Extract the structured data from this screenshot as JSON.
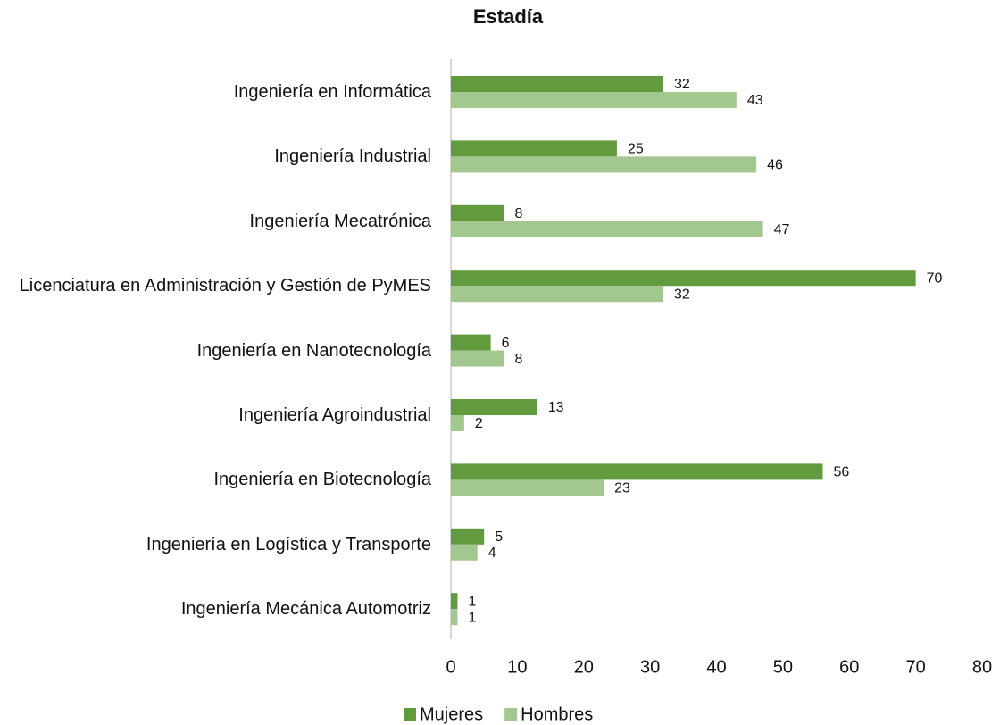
{
  "chart_data": {
    "type": "hbar",
    "title": "Estadía",
    "categories": [
      "Ingeniería en Informática",
      "Ingeniería Industrial",
      "Ingeniería Mecatrónica",
      "Licenciatura en Administración y Gestión de PyMES",
      "Ingeniería en Nanotecnología",
      "Ingeniería Agroindustrial",
      "Ingeniería en Biotecnología",
      "Ingeniería en Logística y Transporte",
      "Ingeniería Mecánica Automotriz"
    ],
    "series": [
      {
        "name": "Mujeres",
        "color": "#629a3e",
        "values": [
          32,
          25,
          8,
          70,
          6,
          13,
          56,
          5,
          1
        ]
      },
      {
        "name": "Hombres",
        "color": "#a3c88f",
        "values": [
          43,
          46,
          47,
          32,
          8,
          2,
          23,
          4,
          1
        ]
      }
    ],
    "xlim": [
      0,
      80
    ],
    "xticks": [
      0,
      10,
      20,
      30,
      40,
      50,
      60,
      70,
      80
    ],
    "legend": "bottom"
  }
}
